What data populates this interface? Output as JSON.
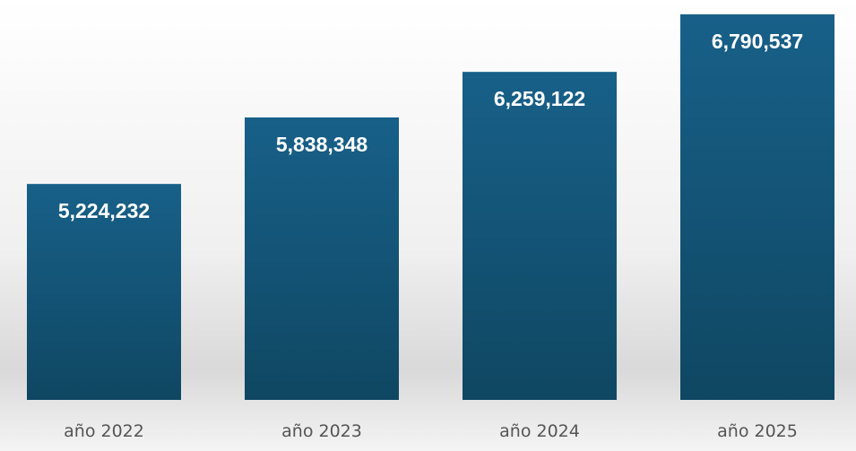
{
  "chart_data": {
    "type": "bar",
    "categories": [
      "año 2022",
      "año 2023",
      "año 2024",
      "año 2025"
    ],
    "values": [
      5224232,
      5838348,
      6259122,
      6790537
    ],
    "data_labels": [
      "5,224,232",
      "5,838,348",
      "6,259,122",
      "6,790,537"
    ],
    "title": "",
    "xlabel": "",
    "ylabel": "",
    "grid": false,
    "legend": "none",
    "colors": {
      "bar_top": "#186089",
      "bar_bottom": "#0f4762",
      "label_text": "#ffffff",
      "category_text": "#555555",
      "background": "#f3f3f3"
    }
  }
}
